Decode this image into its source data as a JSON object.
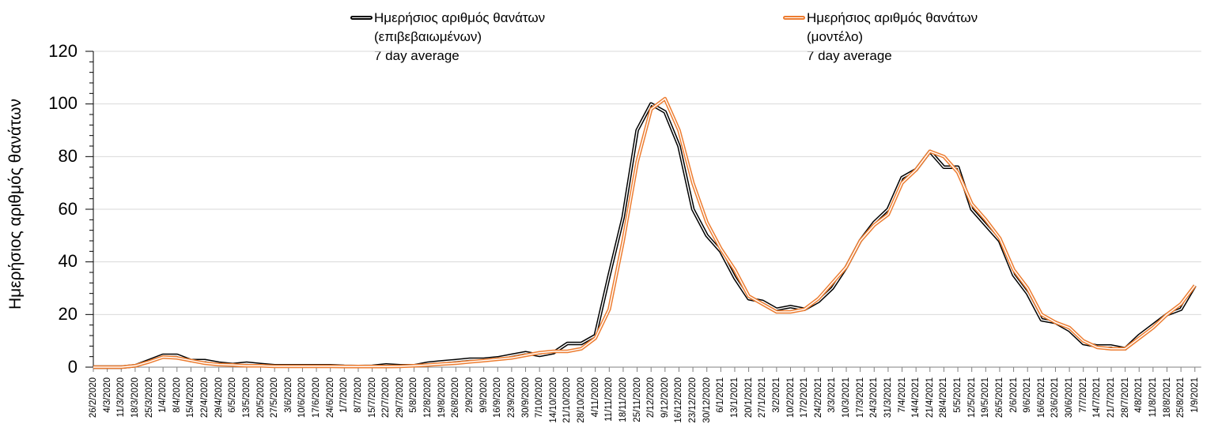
{
  "chart_data": {
    "type": "line",
    "title": "",
    "xlabel": "",
    "ylabel": "Ημερήσιος αριθμός θανάτων",
    "ylim": [
      0,
      120
    ],
    "yticks": [
      0,
      20,
      40,
      60,
      80,
      100,
      120
    ],
    "grid": true,
    "legend_position": "top",
    "categories": [
      "26/2/2020",
      "4/3/2020",
      "11/3/2020",
      "18/3/2020",
      "25/3/2020",
      "1/4/2020",
      "8/4/2020",
      "15/4/2020",
      "22/4/2020",
      "29/4/2020",
      "6/5/2020",
      "13/5/2020",
      "20/5/2020",
      "27/5/2020",
      "3/6/2020",
      "10/6/2020",
      "17/6/2020",
      "24/6/2020",
      "1/7/2020",
      "8/7/2020",
      "15/7/2020",
      "22/7/2020",
      "29/7/2020",
      "5/8/2020",
      "12/8/2020",
      "19/8/2020",
      "26/8/2020",
      "2/9/2020",
      "9/9/2020",
      "16/9/2020",
      "23/9/2020",
      "30/9/2020",
      "7/10/2020",
      "14/10/2020",
      "21/10/2020",
      "28/10/2020",
      "4/11/2020",
      "11/11/2020",
      "18/11/2020",
      "25/11/2020",
      "2/12/2020",
      "9/12/2020",
      "16/12/2020",
      "23/12/2020",
      "30/12/2020",
      "6/1/2021",
      "13/1/2021",
      "20/1/2021",
      "27/1/2021",
      "3/2/2021",
      "10/2/2021",
      "17/2/2021",
      "24/2/2021",
      "3/3/2021",
      "10/3/2021",
      "17/3/2021",
      "24/3/2021",
      "31/3/2021",
      "7/4/2021",
      "14/4/2021",
      "21/4/2021",
      "28/4/2021",
      "5/5/2021",
      "12/5/2021",
      "19/5/2021",
      "26/5/2021",
      "2/6/2021",
      "9/6/2021",
      "16/6/2021",
      "23/6/2021",
      "30/6/2021",
      "7/7/2021",
      "14/7/2021",
      "21/7/2021",
      "28/7/2021",
      "4/8/2021",
      "11/8/2021",
      "18/8/2021",
      "25/8/2021",
      "1/9/2021"
    ],
    "series": [
      {
        "name": "Ημερήσιος αριθμός θανάτων (επιβεβαιωμένων) 7 day average",
        "color": "#000000",
        "values": [
          0,
          0,
          0,
          0.5,
          2.5,
          4.5,
          4.5,
          2.5,
          2.5,
          1.5,
          1,
          1.5,
          1,
          0.5,
          0.5,
          0.5,
          0.5,
          0.5,
          0.3,
          0.2,
          0.3,
          0.8,
          0.5,
          0.5,
          1.5,
          2,
          2.5,
          3,
          3,
          3.5,
          4.5,
          5.5,
          4.5,
          5.5,
          9,
          9,
          12,
          35,
          57,
          90,
          100,
          97,
          84,
          60,
          50,
          44,
          34,
          26,
          25,
          22,
          23,
          22,
          25,
          30,
          38,
          48,
          55,
          60,
          72,
          75,
          82,
          76,
          76,
          60,
          54,
          48,
          35,
          28,
          18,
          17,
          14,
          9,
          8,
          8,
          7,
          12,
          16,
          20,
          22,
          31
        ]
      },
      {
        "name": "Ημερήσιος αριθμός θανάτων (μοντέλο) 7 day average",
        "color": "#ED7D31",
        "values": [
          0,
          0,
          0,
          0.5,
          2,
          3.8,
          3.5,
          2.5,
          1.5,
          1,
          0.8,
          0.5,
          0.5,
          0.3,
          0.3,
          0.3,
          0.3,
          0.3,
          0.2,
          0.2,
          0.2,
          0.2,
          0.3,
          0.5,
          0.8,
          1.2,
          1.5,
          2,
          2.5,
          3,
          3.5,
          4.5,
          5.5,
          6,
          6,
          7,
          11,
          22,
          48,
          78,
          98,
          102,
          90,
          70,
          55,
          45,
          37,
          27,
          24,
          21,
          21,
          22,
          26,
          32,
          38,
          48,
          54,
          58,
          70,
          75,
          82,
          80,
          74,
          62,
          56,
          49,
          37,
          30,
          20,
          17,
          15,
          10,
          7.5,
          7,
          7,
          11,
          15,
          20,
          24,
          31
        ]
      }
    ]
  },
  "legend": {
    "series1": {
      "line1": "Ημερήσιος αριθμός θανάτων",
      "line2": "(επιβεβαιωμένων)",
      "line3": "7 day average"
    },
    "series2": {
      "line1": "Ημερήσιος αριθμός θανάτων",
      "line2": "(μοντέλο)",
      "line3": "7 day average"
    }
  },
  "axis": {
    "ylabel": "Ημερήσιος αριθμός θανάτων",
    "ytick_labels": [
      "0",
      "20",
      "40",
      "60",
      "80",
      "100",
      "120"
    ]
  }
}
